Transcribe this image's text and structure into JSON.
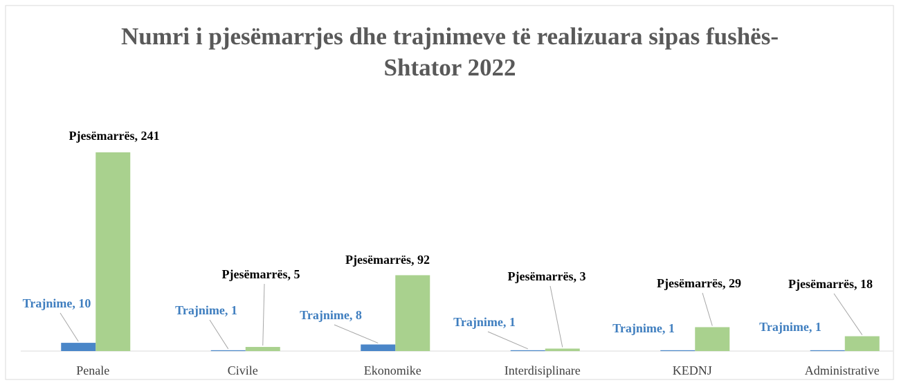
{
  "chart_data": {
    "type": "bar",
    "title": "Numri i pjesëmarrjes dhe trajnimeve të realizuara sipas fushës- Shtator 2022",
    "categories": [
      "Penale",
      "Civile",
      "Ekonomike",
      "Interdisiplinare",
      "KEDNJ",
      "Administrative"
    ],
    "series": [
      {
        "name": "Trajnime",
        "color": "#4a86c8",
        "label_color": "#3f7ebf",
        "values": [
          10,
          1,
          8,
          1,
          1,
          1
        ],
        "value_labels": [
          "Trajnime, 10",
          "Trajnime, 1",
          "Trajnime, 8",
          "Trajnime, 1",
          "Trajnime, 1",
          "Trajnime, 1"
        ]
      },
      {
        "name": "Pjesëmarrës",
        "color": "#a9d18e",
        "label_color": "#000000",
        "values": [
          241,
          5,
          92,
          3,
          29,
          18
        ],
        "value_labels": [
          "Pjesëmarrës, 241",
          "Pjesëmarrës, 5",
          "Pjesëmarrës, 92",
          "Pjesëmarrës, 3",
          "Pjesëmarrës, 29",
          "Pjesëmarrës, 18"
        ]
      }
    ]
  }
}
